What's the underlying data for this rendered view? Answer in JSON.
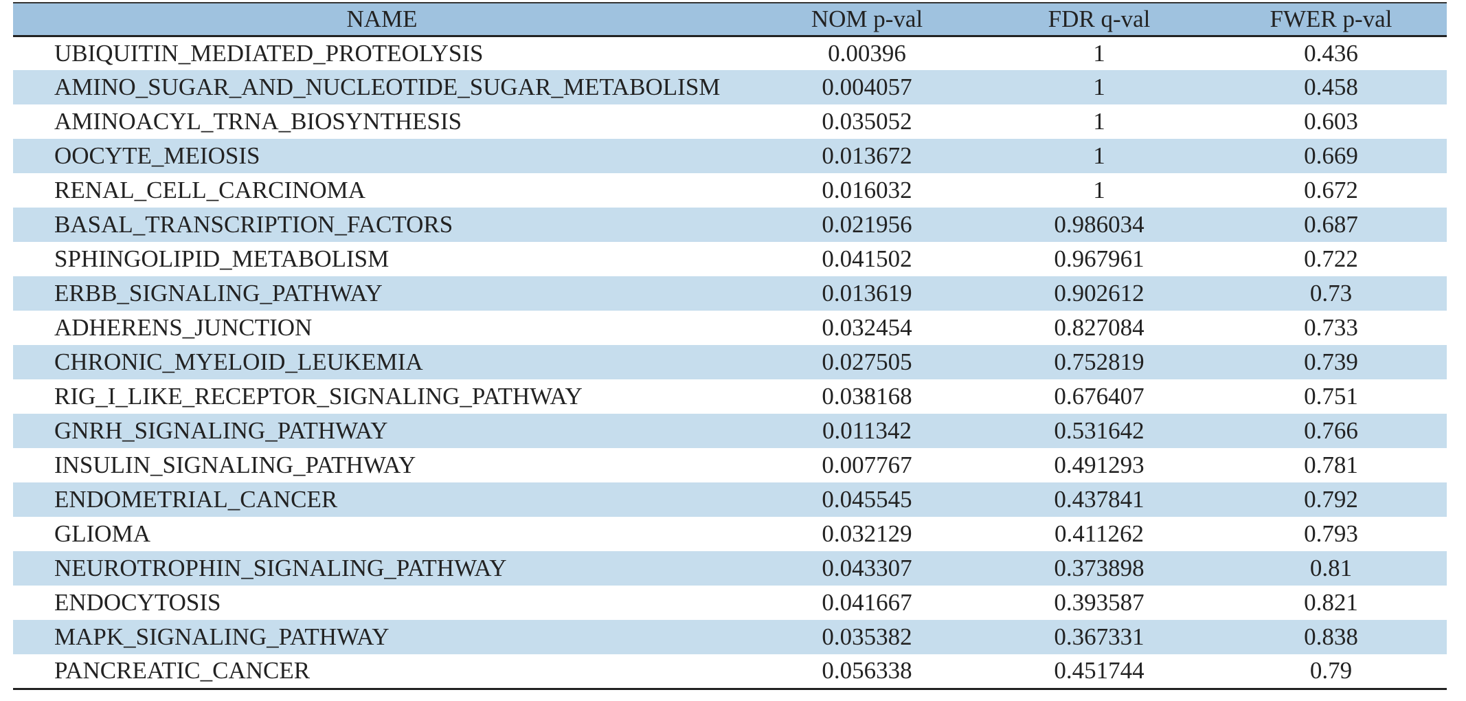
{
  "table": {
    "header": [
      "NAME",
      "NOM p-val",
      "FDR q-val",
      "FWER p-val"
    ],
    "rows": [
      [
        "UBIQUITIN_MEDIATED_PROTEOLYSIS",
        0.00396,
        1,
        0.436
      ],
      [
        "AMINO_SUGAR_AND_NUCLEOTIDE_SUGAR_METABOLISM",
        0.004057,
        1,
        0.458
      ],
      [
        "AMINOACYL_TRNA_BIOSYNTHESIS",
        0.035052,
        1,
        0.603
      ],
      [
        "OOCYTE_MEIOSIS",
        0.013672,
        1,
        0.669
      ],
      [
        "RENAL_CELL_CARCINOMA",
        0.016032,
        1,
        0.672
      ],
      [
        "BASAL_TRANSCRIPTION_FACTORS",
        0.021956,
        0.986034,
        0.687
      ],
      [
        "SPHINGOLIPID_METABOLISM",
        0.041502,
        0.967961,
        0.722
      ],
      [
        "ERBB_SIGNALING_PATHWAY",
        0.013619,
        0.902612,
        0.73
      ],
      [
        "ADHERENS_JUNCTION",
        0.032454,
        0.827084,
        0.733
      ],
      [
        "CHRONIC_MYELOID_LEUKEMIA",
        0.027505,
        0.752819,
        0.739
      ],
      [
        "RIG_I_LIKE_RECEPTOR_SIGNALING_PATHWAY",
        0.038168,
        0.676407,
        0.751
      ],
      [
        "GNRH_SIGNALING_PATHWAY",
        0.011342,
        0.531642,
        0.766
      ],
      [
        "INSULIN_SIGNALING_PATHWAY",
        0.007767,
        0.491293,
        0.781
      ],
      [
        "ENDOMETRIAL_CANCER",
        0.045545,
        0.437841,
        0.792
      ],
      [
        "GLIOMA",
        0.032129,
        0.411262,
        0.793
      ],
      [
        "NEUROTROPHIN_SIGNALING_PATHWAY",
        0.043307,
        0.373898,
        0.81
      ],
      [
        "ENDOCYTOSIS",
        0.041667,
        0.393587,
        0.821
      ],
      [
        "MAPK_SIGNALING_PATHWAY",
        0.035382,
        0.367331,
        0.838
      ],
      [
        "PANCREATIC_CANCER",
        0.056338,
        0.451744,
        0.79
      ]
    ]
  }
}
